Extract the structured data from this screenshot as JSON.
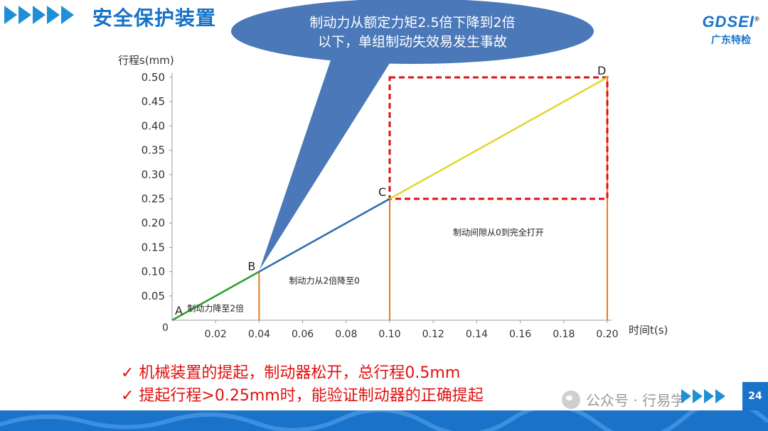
{
  "header": {
    "title": "安全保护装置"
  },
  "logo": {
    "mark": "GDSEI",
    "sub": "广东特检",
    "registered": "®"
  },
  "callout": {
    "line1": "制动力从额定力矩2.5倍下降到2倍",
    "line2": "以下，单组制动失效易发生事故",
    "fill": "#4a78b8"
  },
  "chart_data": {
    "type": "line",
    "ylabel": "行程s(mm)",
    "xlabel": "时间t(s)",
    "origin_label": "0",
    "xlim": [
      0,
      0.2
    ],
    "ylim": [
      0,
      0.5
    ],
    "x_ticks": [
      "0.02",
      "0.04",
      "0.06",
      "0.08",
      "0.10",
      "0.12",
      "0.14",
      "0.16",
      "0.18",
      "0.20"
    ],
    "y_ticks": [
      "0.05",
      "0.10",
      "0.15",
      "0.20",
      "0.25",
      "0.30",
      "0.35",
      "0.40",
      "0.45",
      "0.50"
    ],
    "segments": [
      {
        "x": [
          0,
          0.04
        ],
        "y": [
          0,
          0.1
        ],
        "color": "#2aa02a"
      },
      {
        "x": [
          0.04,
          0.1
        ],
        "y": [
          0.1,
          0.25
        ],
        "color": "#2a6cb0"
      },
      {
        "x": [
          0.1,
          0.2
        ],
        "y": [
          0.25,
          0.5
        ],
        "color": "#e0d830"
      }
    ],
    "points": [
      {
        "label": "A",
        "x": 0,
        "y": 0
      },
      {
        "label": "B",
        "x": 0.04,
        "y": 0.1
      },
      {
        "label": "C",
        "x": 0.1,
        "y": 0.25
      },
      {
        "label": "D",
        "x": 0.2,
        "y": 0.5
      }
    ],
    "vlines": [
      0.04,
      0.1,
      0.2
    ],
    "vline_color": "#e87b1e",
    "dashed_box": {
      "x": [
        0.1,
        0.2
      ],
      "y": [
        0.25,
        0.5
      ],
      "color": "#e01010"
    },
    "annotations": [
      {
        "text": "制动力降至2倍",
        "x": 0.02,
        "y": 0.018
      },
      {
        "text": "制动力从2倍降至0",
        "x": 0.07,
        "y": 0.075
      },
      {
        "text": "制动间隙从0到完全打开",
        "x": 0.15,
        "y": 0.175
      }
    ]
  },
  "bullets": [
    "✓ 机械装置的提起，制动器松开，总行程0.5mm",
    "✓ 提起行程>0.25mm时，能验证制动器的正确提起"
  ],
  "watermark": {
    "text": "公众号 · 行易学"
  },
  "footer": {
    "page": "24"
  }
}
